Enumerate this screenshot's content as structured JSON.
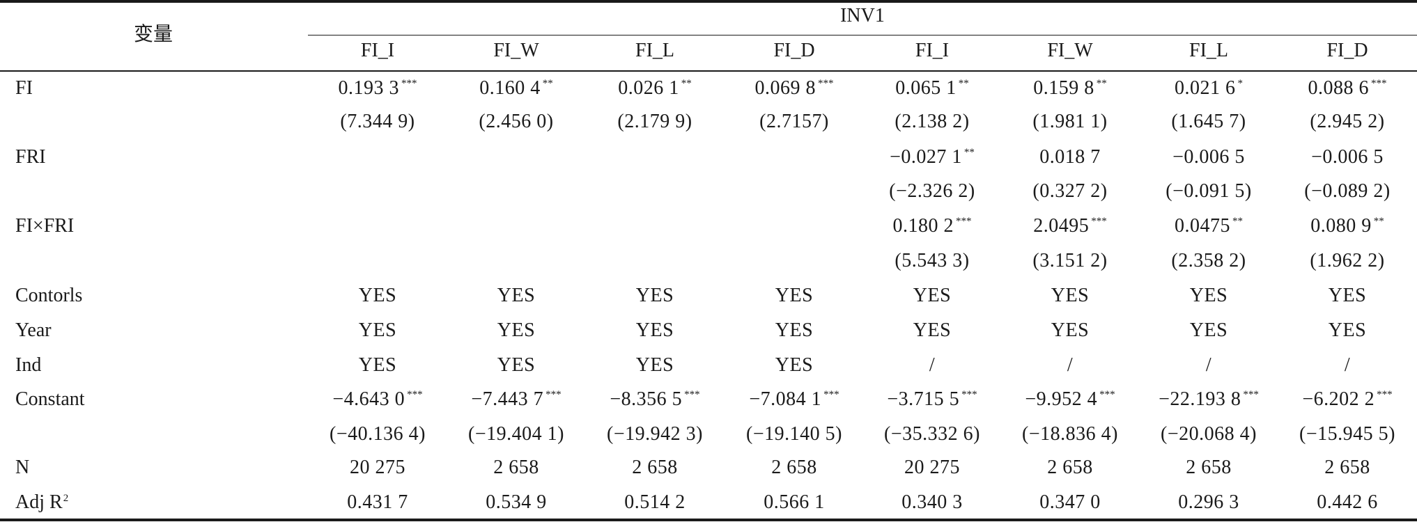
{
  "header": {
    "var_label": "变量",
    "group_label": "INV1",
    "columns": [
      "FI_I",
      "FI_W",
      "FI_L",
      "FI_D",
      "FI_I",
      "FI_W",
      "FI_L",
      "FI_D"
    ]
  },
  "rows": [
    {
      "label": "FI",
      "coef": [
        {
          "v": "0.193 3",
          "s": "***"
        },
        {
          "v": "0.160 4",
          "s": "**"
        },
        {
          "v": "0.026 1",
          "s": "**"
        },
        {
          "v": "0.069 8",
          "s": "***"
        },
        {
          "v": "0.065 1",
          "s": "**"
        },
        {
          "v": "0.159 8",
          "s": "**"
        },
        {
          "v": "0.021 6",
          "s": "*"
        },
        {
          "v": "0.088 6",
          "s": "***"
        }
      ],
      "t": [
        "(7.344 9)",
        "(2.456 0)",
        "(2.179 9)",
        "(2.7157)",
        "(2.138 2)",
        "(1.981 1)",
        "(1.645 7)",
        "(2.945 2)"
      ]
    },
    {
      "label": "FRI",
      "coef": [
        {
          "v": "",
          "s": ""
        },
        {
          "v": "",
          "s": ""
        },
        {
          "v": "",
          "s": ""
        },
        {
          "v": "",
          "s": ""
        },
        {
          "v": "−0.027 1",
          "s": "**"
        },
        {
          "v": "0.018 7",
          "s": ""
        },
        {
          "v": "−0.006 5",
          "s": ""
        },
        {
          "v": "−0.006 5",
          "s": ""
        }
      ],
      "t": [
        "",
        "",
        "",
        "",
        "(−2.326 2)",
        "(0.327 2)",
        "(−0.091 5)",
        "(−0.089 2)"
      ]
    },
    {
      "label": "FI×FRI",
      "coef": [
        {
          "v": "",
          "s": ""
        },
        {
          "v": "",
          "s": ""
        },
        {
          "v": "",
          "s": ""
        },
        {
          "v": "",
          "s": ""
        },
        {
          "v": "0.180 2",
          "s": "***"
        },
        {
          "v": "2.0495",
          "s": "***"
        },
        {
          "v": "0.0475",
          "s": "**"
        },
        {
          "v": "0.080 9",
          "s": "**"
        }
      ],
      "t": [
        "",
        "",
        "",
        "",
        "(5.543 3)",
        "(3.151 2)",
        "(2.358 2)",
        "(1.962 2)"
      ]
    }
  ],
  "controls": [
    {
      "label": "Contorls",
      "values": [
        "YES",
        "YES",
        "YES",
        "YES",
        "YES",
        "YES",
        "YES",
        "YES"
      ]
    },
    {
      "label": "Year",
      "values": [
        "YES",
        "YES",
        "YES",
        "YES",
        "YES",
        "YES",
        "YES",
        "YES"
      ]
    },
    {
      "label": "Ind",
      "values": [
        "YES",
        "YES",
        "YES",
        "YES",
        "/",
        "/",
        "/",
        "/"
      ]
    }
  ],
  "constant": {
    "label": "Constant",
    "coef": [
      {
        "v": "−4.643 0",
        "s": "***"
      },
      {
        "v": "−7.443 7",
        "s": "***"
      },
      {
        "v": "−8.356 5",
        "s": "***"
      },
      {
        "v": "−7.084 1",
        "s": "***"
      },
      {
        "v": "−3.715 5",
        "s": "***"
      },
      {
        "v": "−9.952 4",
        "s": "***"
      },
      {
        "v": "−22.193 8",
        "s": "***"
      },
      {
        "v": "−6.202 2",
        "s": "***"
      }
    ],
    "t": [
      "(−40.136 4)",
      "(−19.404 1)",
      "(−19.942 3)",
      "(−19.140 5)",
      "(−35.332 6)",
      "(−18.836 4)",
      "(−20.068 4)",
      "(−15.945 5)"
    ]
  },
  "n": {
    "label": "N",
    "values": [
      "20 275",
      "2 658",
      "2 658",
      "2 658",
      "20 275",
      "2 658",
      "2 658",
      "2 658"
    ]
  },
  "adj_r2": {
    "label_prefix": "Adj R",
    "label_sup": "2",
    "values": [
      "0.431 7",
      "0.534 9",
      "0.514 2",
      "0.566 1",
      "0.340 3",
      "0.347 0",
      "0.296 3",
      "0.442 6"
    ]
  }
}
